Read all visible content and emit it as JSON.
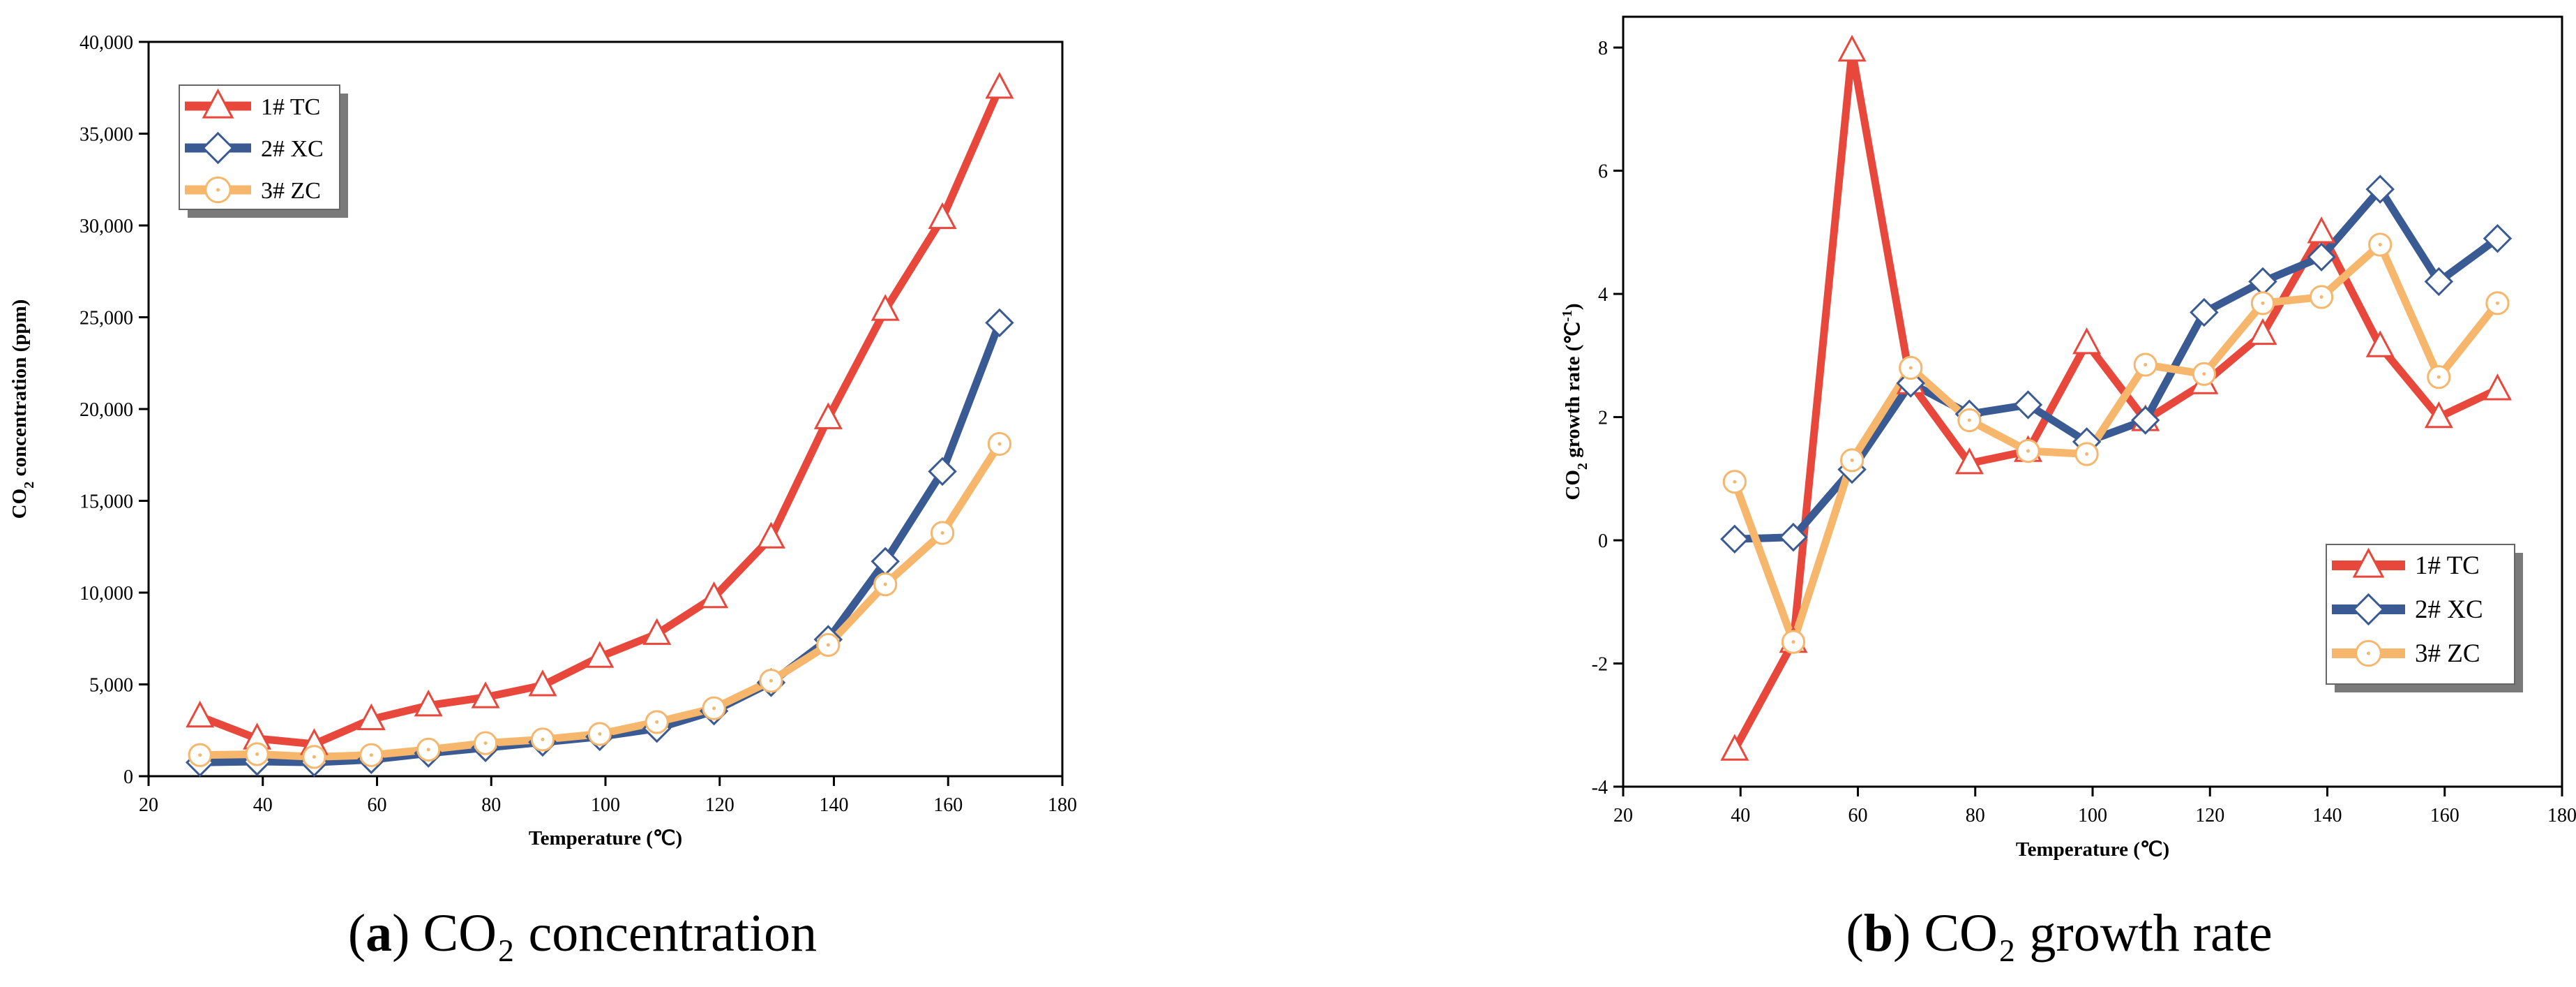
{
  "chart_data": [
    {
      "type": "line",
      "caption_letter": "a",
      "caption_text": "CO₂ concentration",
      "xlabel": "Temperature (℃)",
      "ylabel_parts": [
        "CO",
        "2",
        " concentration (ppm)"
      ],
      "xlim": [
        20,
        180
      ],
      "ylim": [
        0,
        40000
      ],
      "xticks": [
        20,
        40,
        60,
        80,
        100,
        120,
        140,
        160,
        180
      ],
      "xtick_labels": [
        "20",
        "40",
        "60",
        "80",
        "100",
        "120",
        "140",
        "160",
        "180"
      ],
      "yticks": [
        0,
        5000,
        10000,
        15000,
        20000,
        25000,
        30000,
        35000,
        40000
      ],
      "ytick_labels": [
        "0",
        "5,000",
        "10,000",
        "15,000",
        "20,000",
        "25,000",
        "30,000",
        "35,000",
        "40,000"
      ],
      "legend_position": "top-left",
      "grid": false,
      "x": [
        29,
        39,
        49,
        59,
        69,
        79,
        89,
        99,
        109,
        119,
        129,
        139,
        149,
        159,
        169
      ],
      "series": [
        {
          "name": "1# TC",
          "color": "#e8473b",
          "marker": "triangle",
          "values": [
            3250,
            2050,
            1750,
            3100,
            3850,
            4300,
            4950,
            6500,
            7750,
            9750,
            13000,
            19500,
            25400,
            30400,
            37500
          ]
        },
        {
          "name": "2# XC",
          "color": "#3a5a93",
          "marker": "diamond",
          "values": [
            750,
            800,
            750,
            900,
            1250,
            1550,
            1850,
            2150,
            2600,
            3550,
            5100,
            7450,
            11700,
            16600,
            24700
          ]
        },
        {
          "name": "3# ZC",
          "color": "#f6b66b",
          "marker": "circle",
          "values": [
            1150,
            1200,
            1050,
            1150,
            1450,
            1800,
            2000,
            2300,
            2950,
            3700,
            5200,
            7150,
            10450,
            13250,
            18100
          ]
        }
      ]
    },
    {
      "type": "line",
      "caption_letter": "b",
      "caption_text": "CO₂ growth rate",
      "xlabel": "Temperature (℃)",
      "ylabel_parts": [
        "CO",
        "2",
        " growth rate (℃",
        "-1",
        ")"
      ],
      "xlim": [
        20,
        180
      ],
      "ylim": [
        -4,
        8.5
      ],
      "xticks": [
        20,
        40,
        60,
        80,
        100,
        120,
        140,
        160,
        180
      ],
      "xtick_labels": [
        "20",
        "40",
        "60",
        "80",
        "100",
        "120",
        "140",
        "160",
        "180"
      ],
      "yticks": [
        -4,
        -2,
        0,
        2,
        4,
        6,
        8
      ],
      "ytick_labels": [
        "-4",
        "-2",
        "0",
        "2",
        "4",
        "6",
        "8"
      ],
      "legend_position": "bottom-right",
      "grid": false,
      "x": [
        39,
        49,
        59,
        69,
        79,
        89,
        99,
        109,
        119,
        129,
        139,
        149,
        159,
        169
      ],
      "series": [
        {
          "name": "1# TC",
          "color": "#e8473b",
          "marker": "triangle",
          "values": [
            -3.4,
            -1.65,
            7.95,
            2.55,
            1.25,
            1.45,
            3.2,
            1.95,
            2.55,
            3.35,
            5.0,
            3.15,
            2.0,
            2.45
          ]
        },
        {
          "name": "2# XC",
          "color": "#3a5a93",
          "marker": "diamond",
          "values": [
            0.02,
            0.05,
            1.15,
            2.55,
            2.05,
            2.2,
            1.6,
            1.95,
            3.7,
            4.2,
            4.6,
            5.7,
            4.2,
            4.9
          ]
        },
        {
          "name": "3# ZC",
          "color": "#f6b66b",
          "marker": "circle",
          "values": [
            0.95,
            -1.65,
            1.3,
            2.8,
            1.95,
            1.45,
            1.4,
            2.85,
            2.7,
            3.85,
            3.95,
            4.8,
            2.65,
            3.85
          ]
        }
      ]
    }
  ]
}
